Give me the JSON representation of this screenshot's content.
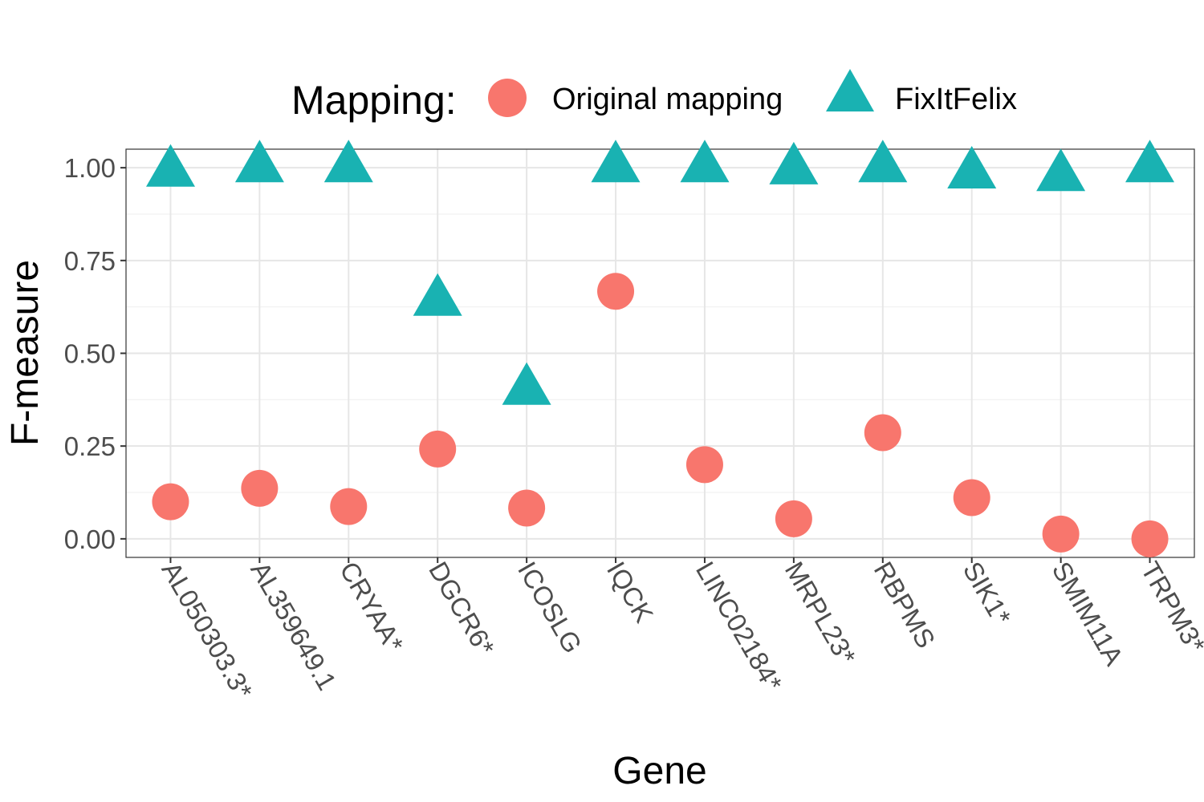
{
  "chart_data": {
    "type": "scatter",
    "xlabel": "Gene",
    "ylabel": "F-measure",
    "ylim": [
      -0.05,
      1.05
    ],
    "yticks": [
      "0.00",
      "0.25",
      "0.50",
      "0.75",
      "1.00"
    ],
    "ytick_values": [
      0,
      0.25,
      0.5,
      0.75,
      1.0
    ],
    "categories": [
      "AL050303.3*",
      "AL359649.1",
      "CRYAA*",
      "DGCR6*",
      "ICOSLG",
      "IQCK",
      "LINC02184*",
      "MRPL23*",
      "RBPMS",
      "SIK1*",
      "SMIM11A",
      "TRPM3*"
    ],
    "grid": true,
    "legend": {
      "title": "Mapping:",
      "position": "top"
    },
    "series": [
      {
        "name": "Original mapping",
        "marker": "circle",
        "color": "#F8766D",
        "values": [
          0.1,
          0.136,
          0.087,
          0.242,
          0.083,
          0.667,
          0.2,
          0.054,
          0.286,
          0.111,
          0.013,
          0.0
        ]
      },
      {
        "name": "FixItFelix",
        "marker": "triangle",
        "color": "#19B2B2",
        "values": [
          0.988,
          1.0,
          1.0,
          0.64,
          0.4,
          1.0,
          1.0,
          0.994,
          1.0,
          0.983,
          0.976,
          1.0
        ]
      }
    ]
  }
}
